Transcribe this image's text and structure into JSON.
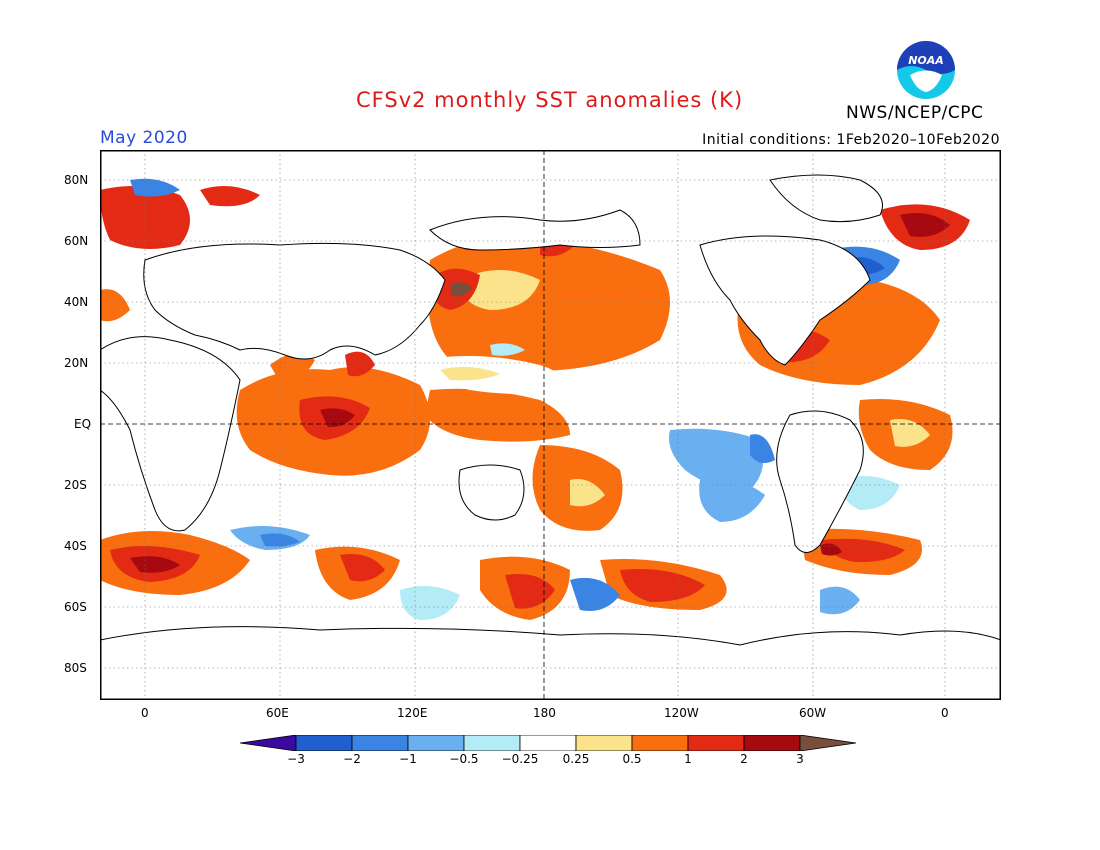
{
  "title": "CFSv2 monthly SST anomalies (K)",
  "agency": "NWS/NCEP/CPC",
  "logo_text": "NOAA",
  "valid_month": "May 2020",
  "initial_conditions": "Initial conditions: 1Feb2020–10Feb2020",
  "lat_labels": [
    "80N",
    "60N",
    "40N",
    "20N",
    "EQ",
    "20S",
    "40S",
    "60S",
    "80S"
  ],
  "lon_labels": [
    "0",
    "60E",
    "120E",
    "180",
    "120W",
    "60W",
    "0"
  ],
  "colorbar": {
    "ticks": [
      "−3",
      "−2",
      "−1",
      "−0.5",
      "−0.25",
      "0.25",
      "0.5",
      "1",
      "2",
      "3"
    ],
    "colors": [
      "#3a0aa0",
      "#1f5fcf",
      "#3a84e3",
      "#6ab0f0",
      "#b3ecf7",
      "#ffffff",
      "#fbe38b",
      "#f96e0e",
      "#e32a14",
      "#a6090f",
      "#7a4e3c"
    ]
  },
  "chart_data": {
    "type": "heatmap",
    "title": "CFSv2 monthly SST anomalies (K)",
    "units": "K",
    "x_axis": {
      "range": [
        -20,
        380
      ],
      "ticks": [
        "0",
        "60E",
        "120E",
        "180",
        "120W",
        "60W",
        "0"
      ]
    },
    "y_axis": {
      "range": [
        -90,
        90
      ],
      "ticks": [
        "80N",
        "60N",
        "40N",
        "20N",
        "EQ",
        "20S",
        "40S",
        "60S",
        "80S"
      ]
    },
    "levels": [
      -3,
      -2,
      -1,
      -0.5,
      -0.25,
      0.25,
      0.5,
      1,
      2,
      3
    ],
    "colors": [
      "#3a0aa0",
      "#1f5fcf",
      "#3a84e3",
      "#6ab0f0",
      "#b3ecf7",
      "#ffffff",
      "#fbe38b",
      "#f96e0e",
      "#e32a14",
      "#a6090f",
      "#7a4e3c"
    ],
    "grid": true,
    "reference_lines": [
      "EQ",
      "180"
    ]
  }
}
